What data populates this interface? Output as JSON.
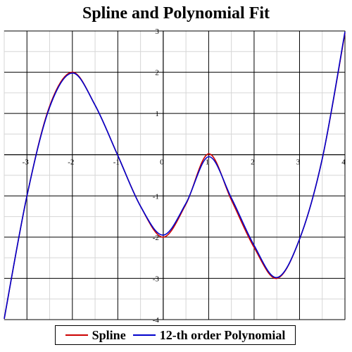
{
  "chart_data": {
    "type": "line",
    "title": "Spline and Polynomial Fit",
    "xlabel": "",
    "ylabel": "",
    "xlim": [
      -3.5,
      4.0
    ],
    "ylim": [
      -4,
      3
    ],
    "x_ticks": [
      -3,
      -2,
      -1,
      0,
      1,
      2,
      3,
      4
    ],
    "y_ticks": [
      -4,
      -3,
      -2,
      -1,
      0,
      1,
      2,
      3
    ],
    "grid": true,
    "legend": "bottom",
    "series": [
      {
        "name": "Spline",
        "color": "#cc0000",
        "x": [
          -3.5,
          -3.0,
          -2.5,
          -2.0,
          -1.5,
          -1.0,
          -0.5,
          0.0,
          0.5,
          1.0,
          1.5,
          2.0,
          2.5,
          3.0,
          3.5,
          4.0
        ],
        "y": [
          -3.98,
          -1.0,
          1.18,
          2.0,
          1.2,
          -0.02,
          -1.25,
          -2.0,
          -1.2,
          0.02,
          -1.1,
          -2.25,
          -3.0,
          -2.05,
          -0.1,
          2.95
        ]
      },
      {
        "name": "12-th order Polynomial",
        "color": "#0000cc",
        "x": [
          -3.5,
          -3.0,
          -2.5,
          -2.0,
          -1.5,
          -1.0,
          -0.5,
          0.0,
          0.5,
          1.0,
          1.5,
          2.0,
          2.5,
          3.0,
          3.5,
          4.0
        ],
        "y": [
          -3.98,
          -1.0,
          1.15,
          1.98,
          1.2,
          -0.02,
          -1.25,
          -1.95,
          -1.18,
          -0.05,
          -1.05,
          -2.2,
          -2.98,
          -2.05,
          -0.1,
          2.98
        ]
      }
    ]
  },
  "legend": {
    "items": [
      {
        "label": "Spline",
        "color": "#cc0000"
      },
      {
        "label": "12-th order Polynomial",
        "color": "#0000cc"
      }
    ]
  }
}
